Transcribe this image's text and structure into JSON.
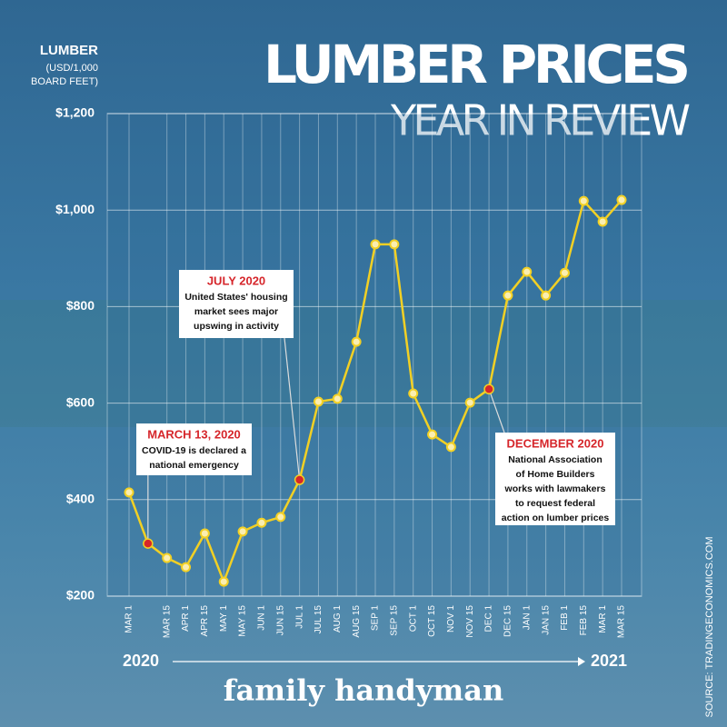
{
  "chart_data": {
    "type": "line",
    "title": "LUMBER PRICES",
    "subtitle": "YEAR IN REVIEW",
    "y_label": [
      "LUMBER",
      "(USD/1,000",
      "BOARD FEET)"
    ],
    "categories": [
      "MAR 1",
      null,
      "MAR 15",
      "APR 1",
      "APR 15",
      "MAY 1",
      "MAY 15",
      "JUN 1",
      "JUN 15",
      "JUL 1",
      "JUL 15",
      "AUG 1",
      "AUG 15",
      "SEP 1",
      "SEP 15",
      "OCT 1",
      "OCT 15",
      "NOV 1",
      "NOV 15",
      "DEC 1",
      "DEC 15",
      "JAN 1",
      "JAN 15",
      "FEB 1",
      "FEB 15",
      "MAR 1",
      "MAR 15"
    ],
    "series": [
      {
        "name": "Lumber",
        "color": "#f2d024",
        "values": [
          415,
          309,
          279,
          260,
          330,
          230,
          334,
          352,
          364,
          441,
          603,
          609,
          727,
          929,
          929,
          620,
          535,
          509,
          601,
          629,
          823,
          872,
          823,
          870,
          1019,
          976,
          1021
        ]
      }
    ],
    "ylim": [
      200,
      1200
    ],
    "yticks": [
      {
        "value": 200,
        "label": "$200"
      },
      {
        "value": 400,
        "label": "$400"
      },
      {
        "value": 600,
        "label": "$600"
      },
      {
        "value": 800,
        "label": "$800"
      },
      {
        "value": 1000,
        "label": "$1,000"
      },
      {
        "value": 1200,
        "label": "$1,200"
      }
    ],
    "grid": true,
    "annotations": [
      {
        "title": "MARCH 13, 2020",
        "text": [
          "COVID-19 is declared a",
          "national emergency"
        ],
        "value": 309,
        "color": "#d6262b"
      },
      {
        "title": "JULY 2020",
        "text": [
          "United States' housing",
          "market sees major",
          "upswing in activity"
        ],
        "value": 441,
        "color": "#d6262b"
      },
      {
        "title": "DECEMBER 2020",
        "text": [
          "National Association",
          "of Home Builders",
          "works with lawmakers",
          "to request federal",
          "action on lumber prices"
        ],
        "value": 629,
        "color": "#d6262b"
      }
    ],
    "period": [
      "2020",
      "2021"
    ],
    "brand": "family handyman",
    "source": "SOURCE: TRADINGECONOMICS.COM"
  }
}
